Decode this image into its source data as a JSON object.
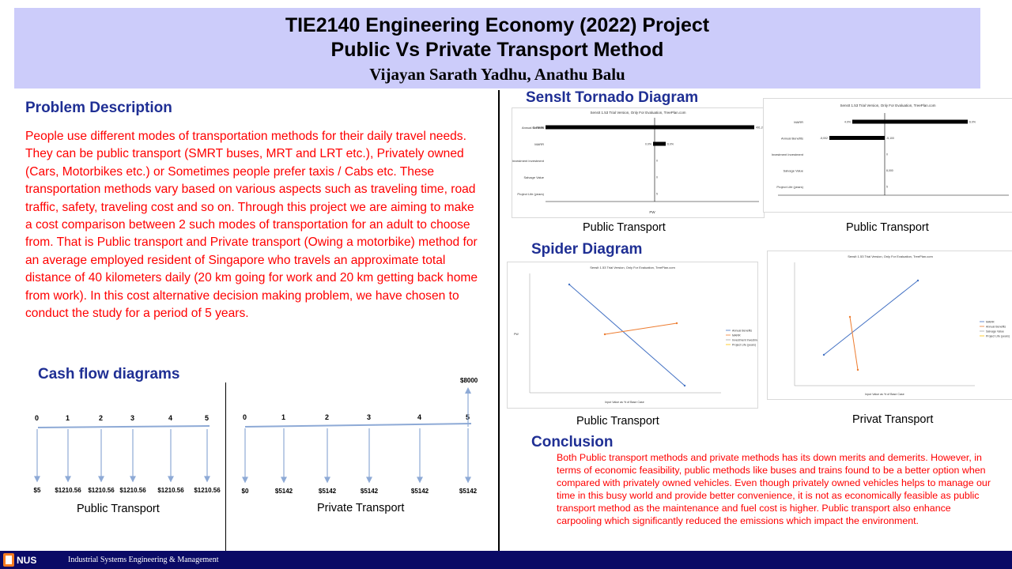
{
  "header": {
    "title_line1": "TIE2140 Engineering Economy (2022) Project",
    "title_line2": "Public Vs Private Transport Method",
    "authors": "Vijayan Sarath Yadhu,   Anathu Balu"
  },
  "problem": {
    "heading": "Problem Description",
    "body": "People use different modes of transportation methods for their daily travel needs. They can be public transport (SMRT buses, MRT and LRT etc.), Privately owned (Cars, Motorbikes etc.) or Sometimes people prefer taxis / Cabs etc. These transportation methods vary based on various aspects such as traveling time, road traffic, safety, traveling cost and so on.  Through this project we are aiming to make a cost comparison between 2 such modes of transportation for an adult to choose from. That is Public transport and Private transport (Owing a motorbike) method for an average employed resident of Singapore who travels an approximate total distance of 40 kilometers daily (20 km going for work and 20 km getting back home from work). In this cost alternative decision making problem, we have chosen to conduct the study for a period of 5 years."
  },
  "cashflow": {
    "heading": "Cash flow diagrams",
    "public": {
      "caption": "Public Transport",
      "periods": [
        "0",
        "1",
        "2",
        "3",
        "4",
        "5"
      ],
      "amounts": [
        "$5",
        "$1210.56",
        "$1210.56",
        "$1210.56",
        "$1210.56",
        "$1210.56"
      ]
    },
    "private": {
      "caption": "Private Transport",
      "periods": [
        "0",
        "1",
        "2",
        "3",
        "4",
        "5"
      ],
      "amounts": [
        "$0",
        "$5142",
        "$5142",
        "$5142",
        "$5142",
        "$5142"
      ],
      "salvage": "$8000"
    }
  },
  "tornado": {
    "heading": "SensIt Tornado Diagram",
    "left": {
      "caption": "Public Transport",
      "chart_title": "SensIt 1.53 Trial Version, Only For Evaluation, TreePlan.com",
      "xlabel": "PW",
      "rows": [
        {
          "label": "Annual Benefits",
          "low_label": "-1,156.00",
          "high_label": "491.20"
        },
        {
          "label": "MARR",
          "low_label": "0.0%",
          "high_label": "6.0%"
        },
        {
          "label": "Investment Investment",
          "low_label": "",
          "high_label": "0"
        },
        {
          "label": "Salvage Value",
          "low_label": "",
          "high_label": "0"
        },
        {
          "label": "Project Life (years)",
          "low_label": "",
          "high_label": "5"
        }
      ]
    },
    "right": {
      "caption": "Public Transport",
      "chart_title": "SensIt 1.53 Trial Version, Only For Evaluation, TreePlan.com",
      "rows": [
        {
          "label": "MARR",
          "low_label": "4.0%",
          "high_label": "6.0%"
        },
        {
          "label": "Annual Benefits",
          "low_label": "-5,002",
          "high_label": "-5,100"
        },
        {
          "label": "Investment Investment",
          "low_label": "",
          "high_label": "0"
        },
        {
          "label": "Salvage Value",
          "low_label": "",
          "high_label": "8,000"
        },
        {
          "label": "Project Life (years)",
          "low_label": "",
          "high_label": "5"
        }
      ]
    }
  },
  "spider": {
    "heading": "Spider Diagram",
    "left": {
      "caption": "Public Transport",
      "chart_title": "SensIt 1.53 Trial Version, Only For Evaluation, TreePlan.com",
      "xlabel": "Input Value as % of Base Case",
      "ylabel": "PW",
      "legend": [
        "Annual Benefits",
        "MARR",
        "Investment Investment",
        "Project Life (years)"
      ]
    },
    "right": {
      "caption": "Privat Transport",
      "chart_title": "SensIt 1.53 Trial Version, Only For Evaluation, TreePlan.com",
      "xlabel": "Input Value as % of Base Case",
      "legend": [
        "MARR",
        "Annual Benefits",
        "Salvage Value",
        "Project Life (years)"
      ]
    }
  },
  "conclusion": {
    "heading": "Conclusion",
    "body": "Both Public transport methods and private methods has its down merits and demerits. However, in terms of economic feasibility, public methods like buses  and trains found to be a better option when compared with privately owned vehicles. Even though privately owned vehicles helps to manage our time in this busy world and provide better convenience, it is not as economically feasible as public transport method as the maintenance and fuel cost is higher. Public transport also enhance carpooling which significantly reduced the emissions which impact the environment."
  },
  "footer": {
    "logo_text": "NUS",
    "department": "Industrial Systems Engineering & Management"
  },
  "colors": {
    "header_bg": "#ccccfa",
    "heading_blue": "#1f2f94",
    "body_red": "#ff0000",
    "footer_bg": "#0a0a66",
    "series_blue": "#4472c4",
    "series_orange": "#ed7d31"
  }
}
